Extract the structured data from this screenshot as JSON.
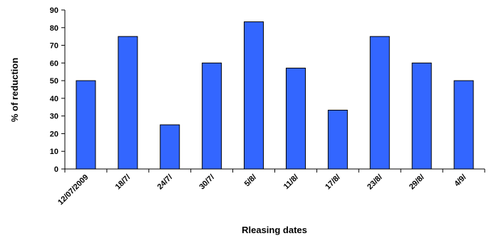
{
  "chart_data": {
    "type": "bar",
    "title": "",
    "xlabel": "Rleasing dates",
    "ylabel": "% of reduction",
    "categories": [
      "12/07/2009",
      "18/7/",
      "24/7/",
      "30/7/",
      "5/8/",
      "11/8/",
      "17/8/",
      "23/8/",
      "29/8/",
      "4/9/"
    ],
    "values": [
      50,
      75,
      25,
      60,
      83.3,
      57.1,
      33.3,
      75,
      60,
      50
    ],
    "ylim": [
      0,
      90
    ],
    "yticks": [
      "0",
      "10",
      "20",
      "30",
      "40",
      "50",
      "60",
      "70",
      "80",
      "90"
    ],
    "grid": false,
    "legend": "none",
    "colors": {
      "bar_fill": "#3366FF",
      "bar_stroke": "#000000",
      "axis": "#000000"
    }
  }
}
